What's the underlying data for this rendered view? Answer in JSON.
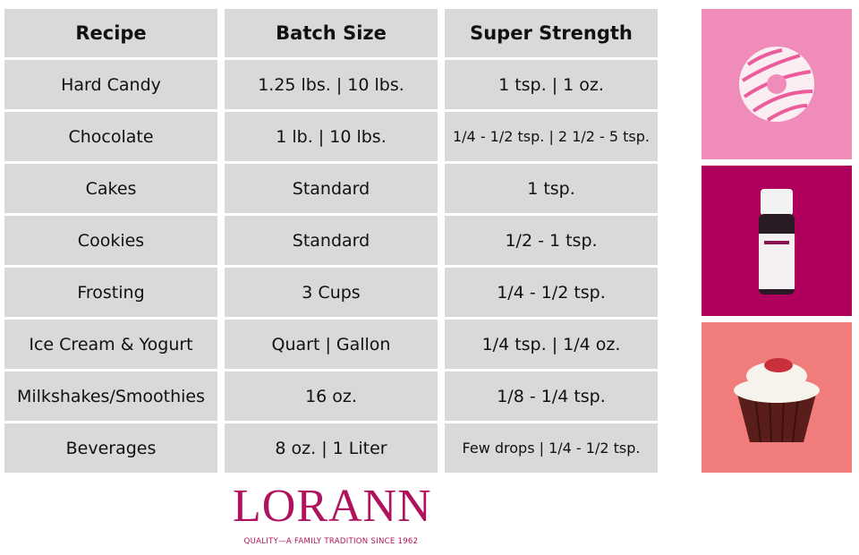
{
  "table": {
    "header": [
      "Recipe",
      "Batch Size",
      "Super Strength"
    ],
    "rows": [
      [
        "Hard Candy",
        "1.25 lbs. | 10 lbs.",
        "1 tsp. | 1 oz."
      ],
      [
        "Chocolate",
        "1 lb. | 10 lbs.",
        "1/4 -  1/2 tsp. | 2 1/2 - 5 tsp."
      ],
      [
        "Cakes",
        "Standard",
        "1 tsp."
      ],
      [
        "Cookies",
        "Standard",
        "1/2 - 1 tsp."
      ],
      [
        "Frosting",
        "3 Cups",
        "1/4 - 1/2 tsp."
      ],
      [
        "Ice Cream & Yogurt",
        "Quart | Gallon",
        "1/4 tsp. | 1/4 oz."
      ],
      [
        "Milkshakes/Smoothies",
        "16 oz.",
        "1/8 - 1/4 tsp."
      ],
      [
        "Beverages",
        "8 oz. | 1 Liter",
        "Few drops | 1/4 - 1/2 tsp."
      ]
    ]
  },
  "logo": {
    "name": "LORANN",
    "tagline": "QUALITY—A FAMILY TRADITION SINCE 1962"
  }
}
